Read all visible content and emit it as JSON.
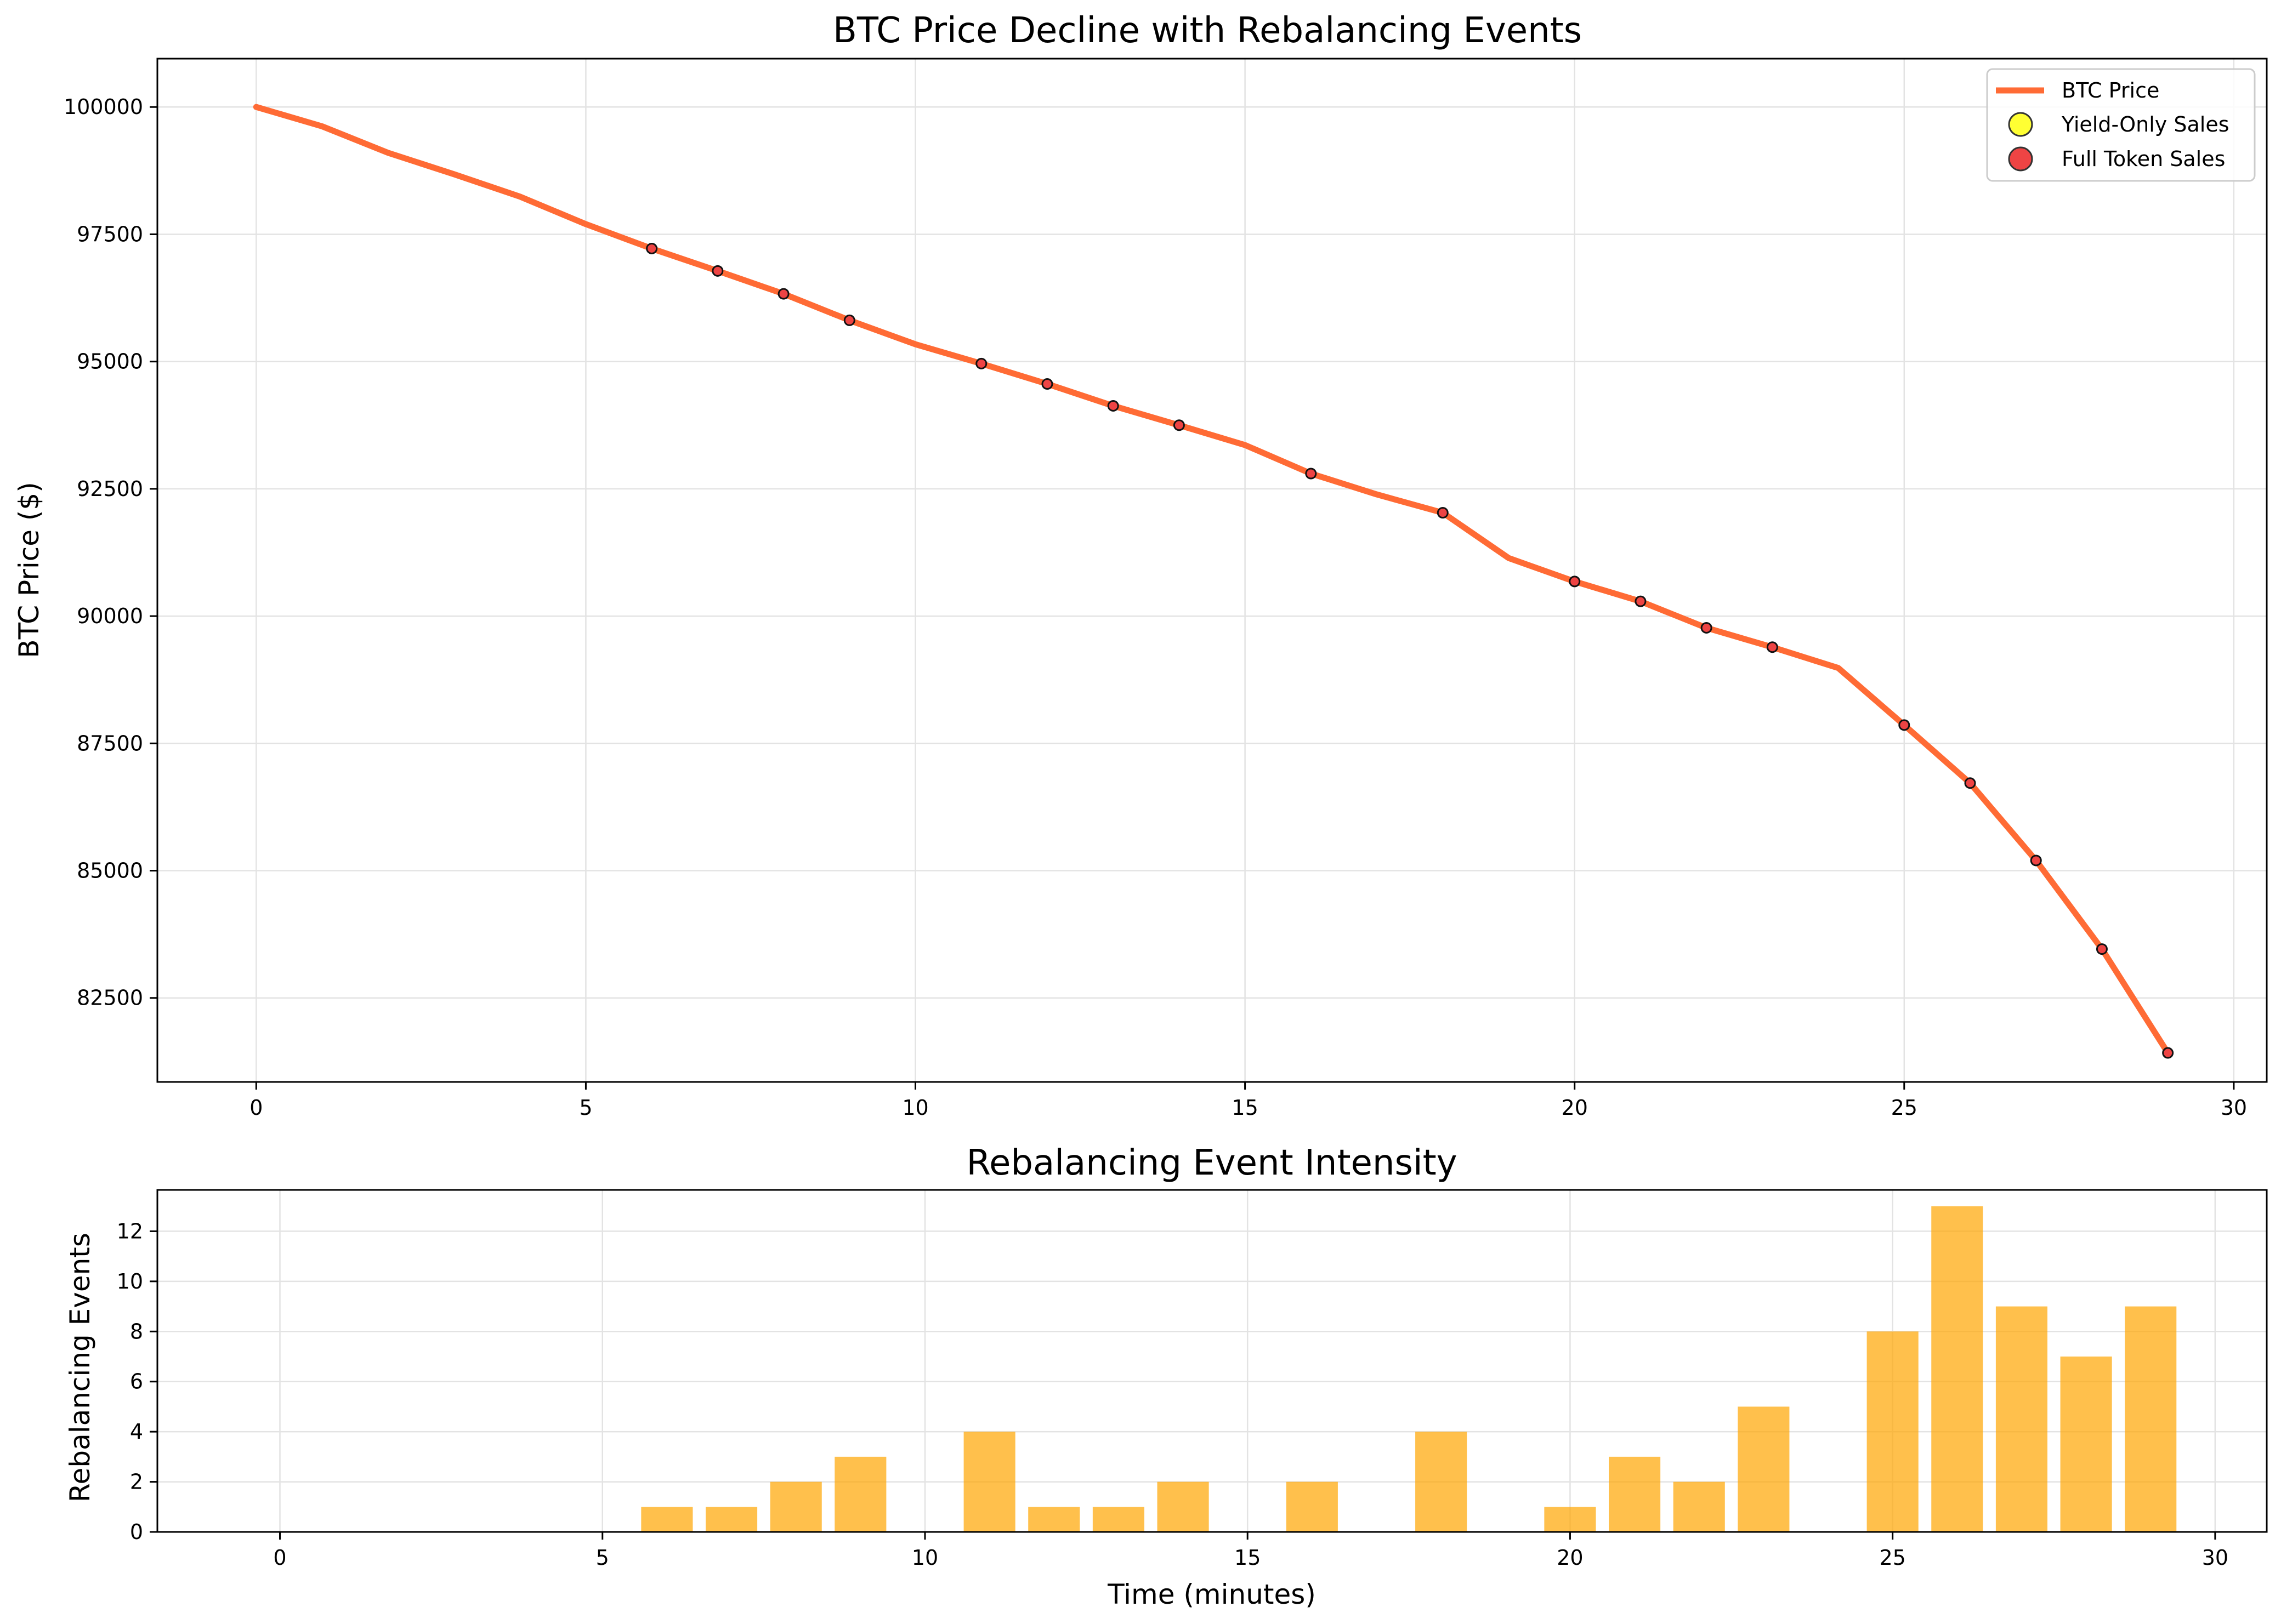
{
  "chart_data": [
    {
      "type": "line",
      "title": "BTC Price Decline with Rebalancing Events",
      "xlabel": "",
      "ylabel": "BTC Price ($)",
      "xlim": [
        -1.5,
        30.5
      ],
      "ylim": [
        80850,
        100950
      ],
      "xticks": [
        0,
        5,
        10,
        15,
        20,
        25,
        30
      ],
      "yticks": [
        82500,
        85000,
        87500,
        90000,
        92500,
        95000,
        97500,
        100000
      ],
      "grid": true,
      "legend": {
        "position": "top-right",
        "entries": [
          {
            "label": "BTC Price",
            "marker": "line",
            "color": "#ff6b35"
          },
          {
            "label": "Yield-Only Sales",
            "marker": "circle",
            "color": "#ffff33"
          },
          {
            "label": "Full Token Sales",
            "marker": "circle",
            "color": "#ee4444"
          }
        ]
      },
      "series": [
        {
          "name": "BTC Price",
          "color": "#ff6b35",
          "x": [
            0,
            1,
            2,
            3,
            4,
            5,
            6,
            7,
            8,
            9,
            10,
            11,
            12,
            13,
            14,
            15,
            16,
            17,
            18,
            19,
            20,
            21,
            22,
            23,
            24,
            25,
            26,
            27,
            28,
            29
          ],
          "y": [
            100000,
            99620,
            99100,
            98680,
            98240,
            97700,
            97220,
            96780,
            96330,
            95810,
            95340,
            94960,
            94560,
            94130,
            93750,
            93360,
            92800,
            92390,
            92030,
            91140,
            90680,
            90290,
            89770,
            89390,
            88980,
            87860,
            86720,
            85200,
            83460,
            81420
          ]
        }
      ],
      "event_markers": {
        "x": [
          6,
          7,
          8,
          9,
          11,
          12,
          13,
          14,
          16,
          18,
          20,
          21,
          22,
          23,
          25,
          26,
          27,
          28,
          29
        ],
        "y": [
          97220,
          96780,
          96330,
          95810,
          94960,
          94560,
          94130,
          93750,
          92800,
          92030,
          90680,
          90290,
          89770,
          89390,
          87860,
          86720,
          85200,
          83460,
          81420
        ]
      }
    },
    {
      "type": "bar",
      "title": "Rebalancing Event Intensity",
      "xlabel": "Time (minutes)",
      "ylabel": "Rebalancing Events",
      "xlim": [
        -1.9,
        30.8
      ],
      "ylim": [
        0,
        13.65
      ],
      "xticks": [
        0,
        5,
        10,
        15,
        20,
        25,
        30
      ],
      "yticks": [
        0,
        2,
        4,
        6,
        8,
        10,
        12
      ],
      "grid": true,
      "color": "#ffa500",
      "categories": [
        0,
        1,
        2,
        3,
        4,
        5,
        6,
        7,
        8,
        9,
        10,
        11,
        12,
        13,
        14,
        15,
        16,
        17,
        18,
        19,
        20,
        21,
        22,
        23,
        24,
        25,
        26,
        27,
        28,
        29
      ],
      "values": [
        0,
        0,
        0,
        0,
        0,
        0,
        1,
        1,
        2,
        3,
        0,
        4,
        1,
        1,
        2,
        0,
        2,
        0,
        4,
        0,
        1,
        3,
        2,
        5,
        0,
        8,
        13,
        9,
        7,
        9
      ]
    }
  ]
}
